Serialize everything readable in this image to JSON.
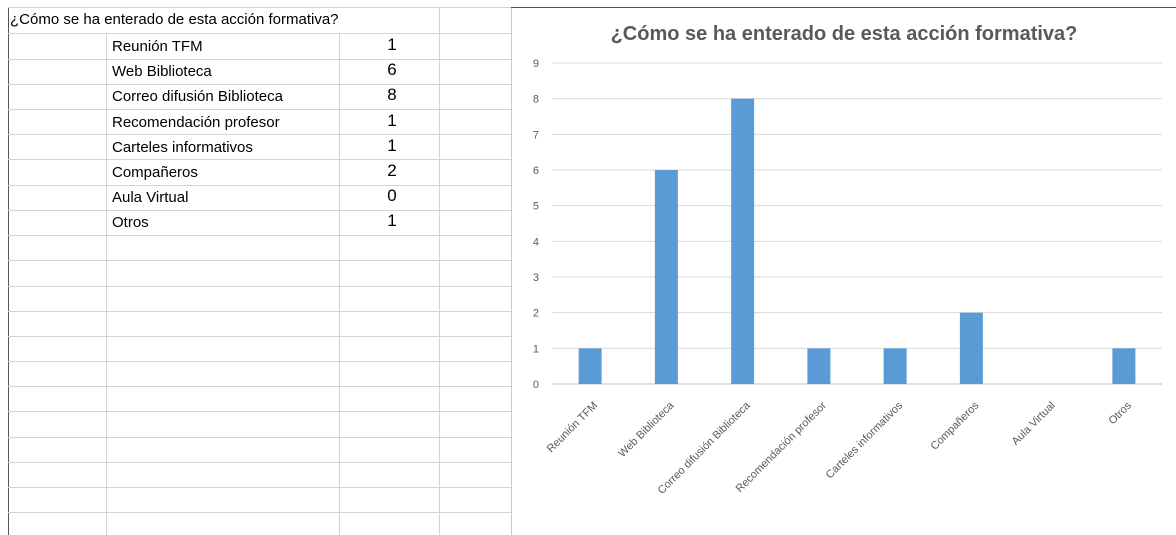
{
  "sheet": {
    "question": "¿Cómo se ha enterado de esta acción formativa?",
    "rows": [
      {
        "label": "Reunión TFM",
        "value": "1"
      },
      {
        "label": "Web Biblioteca",
        "value": "6"
      },
      {
        "label": "Correo difusión Biblioteca",
        "value": "8"
      },
      {
        "label": "Recomendación profesor",
        "value": "1"
      },
      {
        "label": "Carteles informativos",
        "value": "1"
      },
      {
        "label": "Compañeros",
        "value": "2"
      },
      {
        "label": "Aula Virtual",
        "value": "0"
      },
      {
        "label": "Otros",
        "value": "1"
      }
    ]
  },
  "chart_data": {
    "type": "bar",
    "title": "¿Cómo se ha enterado de esta acción formativa?",
    "categories": [
      "Reunión TFM",
      "Web Biblioteca",
      "Correo difusión Biblioteca",
      "Recomendación profesor",
      "Carteles informativos",
      "Compañeros",
      "Aula Virtual",
      "Otros"
    ],
    "values": [
      1,
      6,
      8,
      1,
      1,
      2,
      0,
      1
    ],
    "ylim": [
      0,
      9
    ],
    "yticks": [
      0,
      1,
      2,
      3,
      4,
      5,
      6,
      7,
      8,
      9
    ],
    "bar_color": "#5b9bd5",
    "grid": true,
    "legend": "none"
  }
}
